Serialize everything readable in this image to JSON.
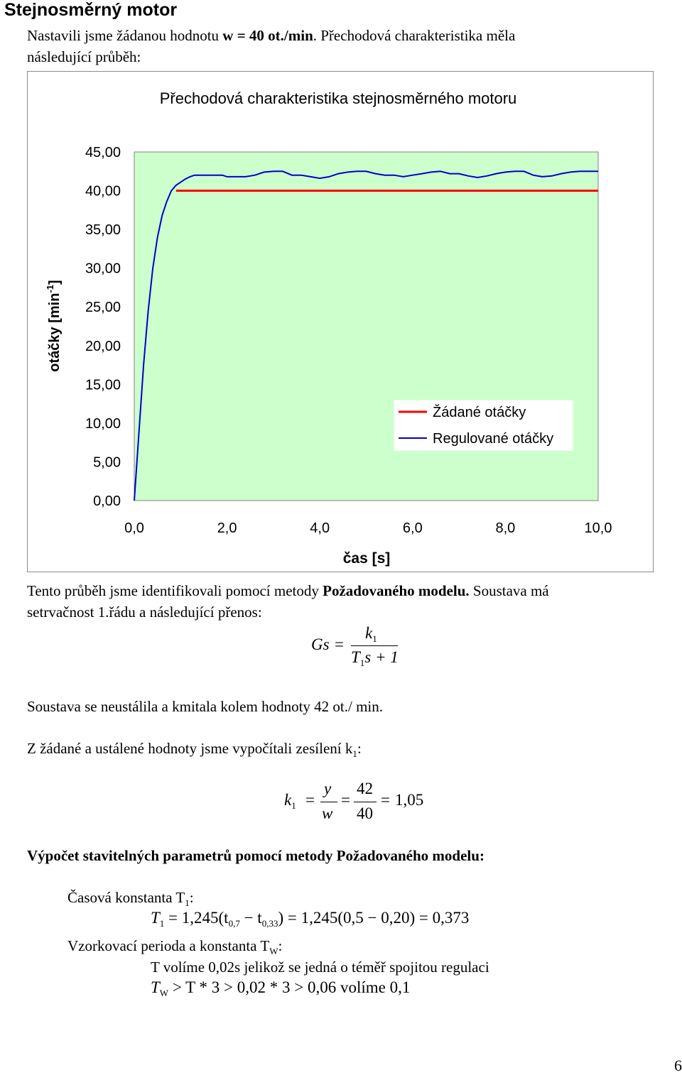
{
  "heading": "Stejnosměrný motor",
  "intro": {
    "line1_plain": "Nastavili jsme žádanou hodnotu ",
    "line1_bold": "w = 40 ot./min",
    "line1_rest": ". Přechodová charakteristika měla",
    "line2": "následující průběh:"
  },
  "chart_data": {
    "type": "line",
    "title": "Přechodová charakteristika stejnosměrného motoru",
    "xlabel": "čas [s]",
    "ylabel": "otáčky [min-1]",
    "ylabel_main": "otáčky [min",
    "ylabel_sup": "-1",
    "ylabel_end": "]",
    "xlim": [
      0,
      10.0
    ],
    "ylim": [
      0,
      45
    ],
    "x_ticks": [
      "0,0",
      "2,0",
      "4,0",
      "6,0",
      "8,0",
      "10,0"
    ],
    "x_tick_values": [
      0,
      2,
      4,
      6,
      8,
      10
    ],
    "y_ticks": [
      "0,00",
      "5,00",
      "10,00",
      "15,00",
      "20,00",
      "25,00",
      "30,00",
      "35,00",
      "40,00",
      "45,00"
    ],
    "y_tick_values": [
      0,
      5,
      10,
      15,
      20,
      25,
      30,
      35,
      40,
      45
    ],
    "grid": false,
    "plot_background": "#ccffcc",
    "legend_position": "right",
    "series": [
      {
        "name": "Žádané otáčky",
        "color": "#ff0000",
        "x": [
          0.9,
          10.0
        ],
        "y": [
          40,
          40
        ]
      },
      {
        "name": "Regulované otáčky",
        "color": "#0000cc",
        "x": [
          0,
          0.2,
          0.3,
          0.4,
          0.5,
          0.6,
          0.7,
          0.8,
          0.9,
          1.0,
          1.1,
          1.2,
          1.3,
          1.4,
          1.5,
          1.6,
          1.7,
          1.8,
          1.9,
          2.0,
          2.2,
          2.4,
          2.6,
          2.8,
          3.0,
          3.2,
          3.4,
          3.6,
          3.8,
          4.0,
          4.2,
          4.4,
          4.6,
          4.8,
          5.0,
          5.2,
          5.4,
          5.6,
          5.8,
          6.0,
          6.2,
          6.4,
          6.6,
          6.8,
          7.0,
          7.2,
          7.4,
          7.6,
          7.8,
          8.0,
          8.2,
          8.4,
          8.6,
          8.8,
          9.0,
          9.2,
          9.4,
          9.6,
          9.8,
          10.0
        ],
        "y": [
          0,
          17.5,
          24.5,
          30.0,
          34.0,
          36.8,
          38.6,
          40.0,
          40.7,
          41.1,
          41.5,
          41.8,
          42.0,
          42.0,
          42.0,
          42.0,
          42.0,
          42.0,
          42.0,
          41.8,
          41.8,
          41.8,
          42.0,
          42.4,
          42.5,
          42.5,
          42.0,
          42.0,
          41.8,
          41.6,
          41.8,
          42.2,
          42.4,
          42.5,
          42.5,
          42.2,
          42.0,
          42.0,
          41.8,
          42.0,
          42.2,
          42.4,
          42.5,
          42.2,
          42.2,
          41.9,
          41.7,
          41.9,
          42.2,
          42.4,
          42.5,
          42.5,
          42.0,
          41.8,
          41.9,
          42.2,
          42.4,
          42.5,
          42.5,
          42.5
        ]
      }
    ]
  },
  "para1": {
    "line1_plain": "Tento průběh jsme identifikovali pomocí metody ",
    "line1_bold": "Požadovaného modelu.",
    "line1_rest": " Soustava má",
    "line2": "setrvačnost 1.řádu a následující přenos:"
  },
  "formula1": {
    "lhs": "Gs",
    "eq": "=",
    "num": "k",
    "num_sub": "1",
    "den_T": "T",
    "den_sub": "1",
    "den_rest": "s + 1"
  },
  "para2": "Soustava se neustálila a kmitala kolem hodnoty 42 ot./ min.",
  "para3_main": "Z žádané a ustálené hodnoty jsme vypočítali zesílení k",
  "para3_sub": "1",
  "para3_end": ":",
  "formula2": {
    "k": "k",
    "k_sub": "1",
    "eq": "=",
    "f1_num": "y",
    "f1_den": "w",
    "f2_num": "42",
    "f2_den": "40",
    "result": "1,05"
  },
  "section_heading": "Výpočet stavitelných parametrů pomocí metody Požadovaného modelu:",
  "time_const_label": "Časová konstanta T",
  "time_const_sub": "1",
  "time_const_colon": ":",
  "formula3": {
    "T": "T",
    "T_sub": "1",
    "part1": "= 1,245(t",
    "t_sub1": "0,7",
    "part2": " − t",
    "t_sub2": "0,33",
    "part3": ") = 1,245(0,5 − 0,20) = 0,373"
  },
  "sampling_label": "Vzorkovací perioda a konstanta T",
  "sampling_sub": "W",
  "sampling_colon": ":",
  "sampling_text": "T volíme 0,02s jelikož se jedná o téměř spojitou regulaci",
  "formula4": {
    "T": "T",
    "T_sub": "W",
    "rest": " > T * 3 > 0,02 * 3 > 0,06  volíme 0,1"
  },
  "page_number": "6"
}
